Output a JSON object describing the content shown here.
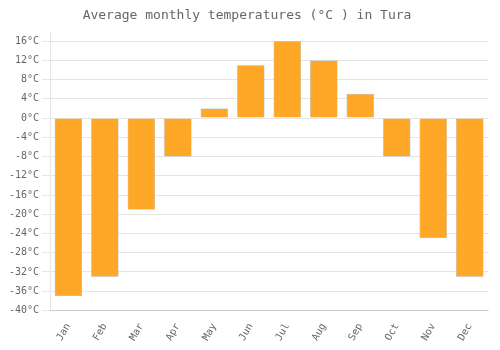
{
  "chart_data": {
    "type": "bar",
    "title": "Average monthly temperatures (°C ) in Tura",
    "categories": [
      "Jan",
      "Feb",
      "Mar",
      "Apr",
      "May",
      "Jun",
      "Jul",
      "Aug",
      "Sep",
      "Oct",
      "Nov",
      "Dec"
    ],
    "values": [
      -37,
      -33,
      -19,
      -8,
      2,
      11,
      16,
      12,
      5,
      -8,
      -25,
      -33
    ],
    "color": "#FFA726",
    "ylim": [
      -40,
      18
    ],
    "yticks": [
      {
        "value": -40,
        "label": "-40°C"
      },
      {
        "value": -36,
        "label": "-36°C"
      },
      {
        "value": -32,
        "label": "-32°C"
      },
      {
        "value": -28,
        "label": "-28°C"
      },
      {
        "value": -24,
        "label": "-24°C"
      },
      {
        "value": -20,
        "label": "-20°C"
      },
      {
        "value": -16,
        "label": "-16°C"
      },
      {
        "value": -12,
        "label": "-12°C"
      },
      {
        "value": -8,
        "label": "-8°C"
      },
      {
        "value": -4,
        "label": "-4°C"
      },
      {
        "value": 0,
        "label": "0°C"
      },
      {
        "value": 4,
        "label": "4°C"
      },
      {
        "value": 8,
        "label": "8°C"
      },
      {
        "value": 12,
        "label": "12°C"
      },
      {
        "value": 16,
        "label": "16°C"
      }
    ],
    "grid": true
  }
}
